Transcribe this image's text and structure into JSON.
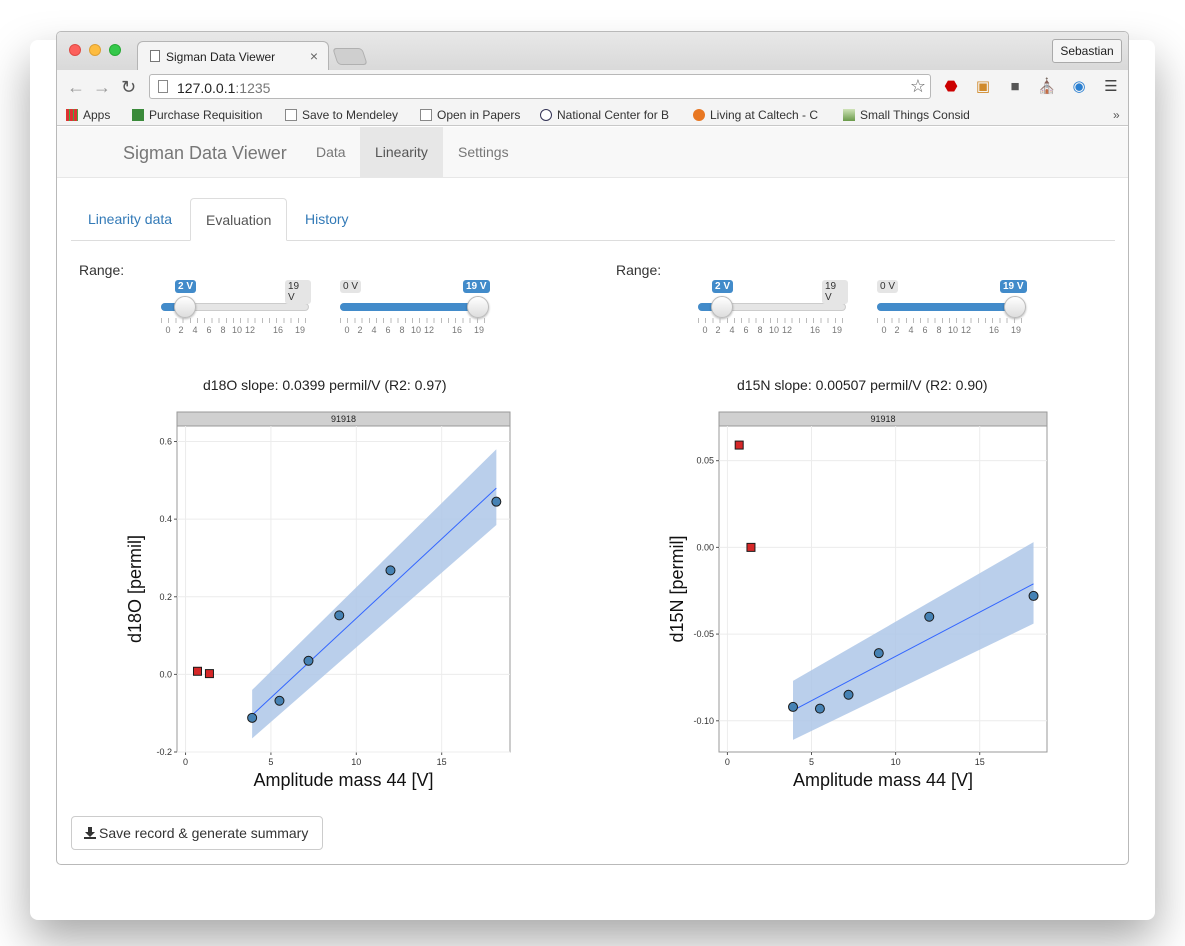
{
  "browser": {
    "tab_title": "Sigman Data Viewer",
    "tab_close": "×",
    "user_button": "Sebastian",
    "url_host": "127.0.0.1",
    "url_port": ":1235",
    "bookmarks": [
      "Apps",
      "Purchase Requisition",
      "Save to Mendeley",
      "Open in Papers",
      "National Center for B",
      "Living at Caltech - C",
      "Small Things Consid"
    ],
    "bookmarks_more": "»"
  },
  "navbar": {
    "brand": "Sigman Data Viewer",
    "links": [
      "Data",
      "Linearity",
      "Settings"
    ],
    "active": "Linearity"
  },
  "subtabs": {
    "items": [
      "Linearity data",
      "Evaluation",
      "History"
    ],
    "active": "Evaluation"
  },
  "range_label": "Range:",
  "sliders": {
    "tick_labels": [
      "0",
      "2",
      "4",
      "6",
      "8",
      "10",
      "12",
      "16",
      "19"
    ],
    "left_min_label": "2 V",
    "left_max_label": "19 V",
    "right_min_label": "0 V",
    "right_max_label": "19 V"
  },
  "save_button": "Save record & generate summary",
  "chart_data": [
    {
      "type": "scatter",
      "title": "d18O slope: 0.0399 permil/V (R2: 0.97)",
      "facet_label": "91918",
      "xlabel": "Amplitude mass 44 [V]",
      "ylabel": "d18O [permil]",
      "xlim": [
        -0.5,
        19
      ],
      "ylim": [
        -0.2,
        0.64
      ],
      "xticks": [
        "0",
        "5",
        "10",
        "15"
      ],
      "yticks": [
        "-0.2",
        "0.0",
        "0.2",
        "0.4",
        "0.6"
      ],
      "series": [
        {
          "values": [
            [
              3.9,
              -0.112
            ],
            [
              5.5,
              -0.068
            ],
            [
              7.2,
              0.035
            ],
            [
              9.0,
              0.152
            ],
            [
              12.0,
              0.268
            ],
            [
              18.2,
              0.445
            ]
          ]
        },
        {
          "values": [
            [
              0.7,
              0.008
            ],
            [
              1.4,
              0.002
            ]
          ]
        }
      ],
      "fit": {
        "x": [
          3.9,
          18.2
        ],
        "y": [
          -0.105,
          0.48
        ],
        "ci_lower": [
          -0.165,
          0.385
        ],
        "ci_upper": [
          -0.04,
          0.58
        ]
      },
      "colors": {
        "included": "#4682b4",
        "excluded": "#d62728",
        "fit": "#3366ff",
        "ribbon": "#aec7e8"
      }
    },
    {
      "type": "scatter",
      "title": "d15N slope: 0.00507 permil/V (R2: 0.90)",
      "facet_label": "91918",
      "xlabel": "Amplitude mass 44 [V]",
      "ylabel": "d15N [permil]",
      "xlim": [
        -0.5,
        19
      ],
      "ylim": [
        -0.118,
        0.07
      ],
      "xticks": [
        "0",
        "5",
        "10",
        "15"
      ],
      "yticks": [
        "-0.10",
        "-0.05",
        "0.00",
        "0.05"
      ],
      "series": [
        {
          "values": [
            [
              3.9,
              -0.092
            ],
            [
              5.5,
              -0.093
            ],
            [
              7.2,
              -0.085
            ],
            [
              9.0,
              -0.061
            ],
            [
              12.0,
              -0.04
            ],
            [
              18.2,
              -0.028
            ]
          ]
        },
        {
          "values": [
            [
              0.7,
              0.059
            ],
            [
              1.4,
              0.0
            ]
          ]
        }
      ],
      "fit": {
        "x": [
          3.9,
          18.2
        ],
        "y": [
          -0.094,
          -0.021
        ],
        "ci_lower": [
          -0.111,
          -0.044
        ],
        "ci_upper": [
          -0.077,
          0.003
        ]
      },
      "colors": {
        "included": "#4682b4",
        "excluded": "#d62728",
        "fit": "#3366ff",
        "ribbon": "#aec7e8"
      }
    }
  ]
}
